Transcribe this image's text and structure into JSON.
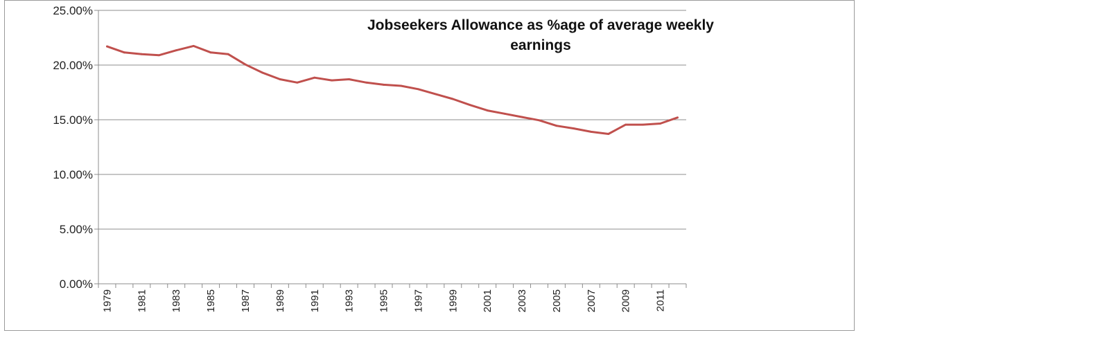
{
  "chart_data": {
    "type": "line",
    "title_lines": [
      "Jobseekers Allowance as %age of average weekly",
      "earnings"
    ],
    "x": [
      1979,
      1980,
      1981,
      1982,
      1983,
      1984,
      1985,
      1986,
      1987,
      1988,
      1989,
      1990,
      1991,
      1992,
      1993,
      1994,
      1995,
      1996,
      1997,
      1998,
      1999,
      2000,
      2001,
      2002,
      2003,
      2004,
      2005,
      2006,
      2007,
      2008,
      2009,
      2010,
      2011,
      2012
    ],
    "x_tick_labels": [
      "1979",
      "1981",
      "1983",
      "1985",
      "1987",
      "1989",
      "1991",
      "1993",
      "1995",
      "1997",
      "1999",
      "2001",
      "2003",
      "2005",
      "2007",
      "2009",
      "2011"
    ],
    "series": [
      {
        "values": [
          21.7,
          21.15,
          21.0,
          20.9,
          21.35,
          21.75,
          21.15,
          21.0,
          20.05,
          19.3,
          18.7,
          18.4,
          18.85,
          18.6,
          18.7,
          18.4,
          18.2,
          18.1,
          17.8,
          17.35,
          16.9,
          16.35,
          15.85,
          15.55,
          15.25,
          14.95,
          14.45,
          14.2,
          13.9,
          13.7,
          14.55,
          14.55,
          14.65,
          15.2
        ],
        "color": "#c0504d"
      }
    ],
    "y_tick_labels": [
      "0.00%",
      "5.00%",
      "10.00%",
      "15.00%",
      "20.00%",
      "25.00%"
    ],
    "ylim": [
      0,
      25
    ],
    "y_step": 5,
    "grid": true,
    "legend": "none"
  },
  "colors": {
    "gridline": "#8c8c8c",
    "axis": "#8c8c8c",
    "frame": "#9a9a9a"
  }
}
